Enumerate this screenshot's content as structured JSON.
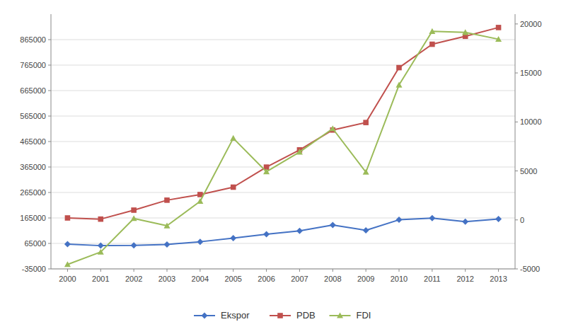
{
  "chart_data": {
    "type": "line",
    "x": [
      2000,
      2001,
      2002,
      2003,
      2004,
      2005,
      2006,
      2007,
      2008,
      2009,
      2010,
      2011,
      2012,
      2013
    ],
    "xlim": [
      1999.5,
      2013.5
    ],
    "xticks": [
      2000,
      2001,
      2002,
      2003,
      2004,
      2005,
      2006,
      2007,
      2008,
      2009,
      2010,
      2011,
      2012,
      2013
    ],
    "ylim": [
      -35000,
      965000
    ],
    "yticks": [
      -35000,
      65000,
      165000,
      265000,
      365000,
      465000,
      565000,
      665000,
      765000,
      865000
    ],
    "y2lim": [
      -5000,
      21000
    ],
    "y2ticks": [
      -5000,
      0,
      5000,
      10000,
      15000,
      20000
    ],
    "grid": true,
    "legend": "bottom",
    "series": [
      {
        "name": "Ekspor",
        "color": "#4472c4",
        "marker": "diamond",
        "values": [
          62124,
          56321,
          57159,
          61058,
          71585,
          85660,
          100799,
          114101,
          137020,
          116510,
          157779,
          164399,
          150366,
          160837
        ]
      },
      {
        "name": "PDB",
        "color": "#c0504d",
        "marker": "square",
        "values": [
          165022,
          160447,
          195661,
          234772,
          256837,
          285869,
          364571,
          432217,
          510228,
          539580,
          755094,
          846834,
          878198,
          912524
        ]
      },
      {
        "name": "FDI",
        "color": "#9bbb59",
        "marker": "triangle",
        "axis": "y2",
        "values": [
          -4550,
          -3278,
          145,
          -597,
          1896,
          8336,
          4914,
          6928,
          9318,
          4877,
          13771,
          19242,
          19138,
          18444
        ]
      }
    ]
  }
}
